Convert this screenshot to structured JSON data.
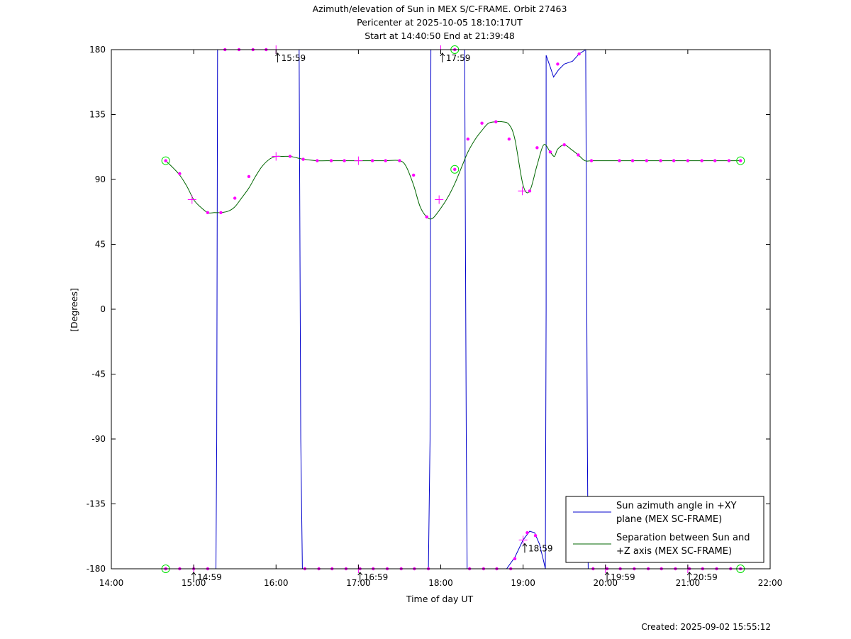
{
  "header": {
    "title_line1": "Azimuth/elevation of Sun in MEX S/C-FRAME.  Orbit 27463",
    "title_line2": "Pericenter at 2025-10-05 18:10:17UT",
    "title_line3": "Start at 14:40:50 End at 21:39:48"
  },
  "footer": {
    "created": "Created: 2025-09-02 15:55:12"
  },
  "colors": {
    "azimuth": "#0000cc",
    "separation": "#006600",
    "marker": "#ff00ff",
    "circle": "#00dd00"
  },
  "chart_data": {
    "type": "line",
    "title": "Azimuth/elevation of Sun in MEX S/C-FRAME.  Orbit 27463",
    "xlabel": "Time of day UT",
    "ylabel": "[Degrees]",
    "xlim": [
      14.0,
      22.0
    ],
    "ylim": [
      -180,
      180
    ],
    "x_ticks": [
      14,
      15,
      16,
      17,
      18,
      19,
      20,
      21,
      22
    ],
    "x_tick_labels": [
      "14:00",
      "15:00",
      "16:00",
      "17:00",
      "18:00",
      "19:00",
      "20:00",
      "21:00",
      "22:00"
    ],
    "y_ticks": [
      180,
      135,
      90,
      45,
      0,
      -45,
      -90,
      -135,
      -180
    ],
    "y_tick_labels": [
      "180",
      "135",
      "90",
      "45",
      "0",
      "-45",
      "-90",
      "-135",
      "-180"
    ],
    "grid": false,
    "legend_position": "bottom-right",
    "series": [
      {
        "name": "Sun azimuth angle in +XY plane (MEX SC-FRAME)",
        "legend_lines": [
          "Sun azimuth angle in +XY",
          "plane (MEX SC-FRAME)"
        ],
        "segments": [
          [
            [
              14.68,
              -180
            ],
            [
              15.0,
              -180
            ],
            [
              15.27,
              -180
            ],
            [
              15.28,
              -90
            ],
            [
              15.29,
              180
            ]
          ],
          [
            [
              15.29,
              180
            ],
            [
              15.6,
              180
            ],
            [
              16.0,
              180
            ],
            [
              16.28,
              180
            ],
            [
              16.3,
              -90
            ],
            [
              16.32,
              -180
            ]
          ],
          [
            [
              16.32,
              -180
            ],
            [
              17.0,
              -180
            ],
            [
              17.85,
              -180
            ],
            [
              17.87,
              -90
            ],
            [
              17.88,
              180
            ]
          ],
          [
            [
              17.88,
              180
            ],
            [
              18.2,
              180
            ],
            [
              18.29,
              180
            ],
            [
              18.31,
              -90
            ],
            [
              18.32,
              -180
            ]
          ],
          [
            [
              18.32,
              -180
            ],
            [
              18.8,
              -180
            ],
            [
              18.9,
              -172
            ],
            [
              19.0,
              -160
            ],
            [
              19.08,
              -154
            ],
            [
              19.14,
              -155
            ],
            [
              19.2,
              -163
            ],
            [
              19.25,
              -175
            ],
            [
              19.27,
              -180
            ]
          ],
          [
            [
              19.27,
              -180
            ],
            [
              19.28,
              0
            ],
            [
              19.28,
              176
            ],
            [
              19.33,
              168
            ],
            [
              19.37,
              161
            ],
            [
              19.43,
              166
            ],
            [
              19.5,
              170
            ],
            [
              19.6,
              172
            ],
            [
              19.68,
              177
            ],
            [
              19.76,
              180
            ]
          ],
          [
            [
              19.76,
              180
            ],
            [
              19.78,
              -90
            ],
            [
              19.79,
              -180
            ],
            [
              20.5,
              -180
            ],
            [
              21.4,
              -180
            ],
            [
              21.64,
              -180
            ]
          ]
        ]
      },
      {
        "name": "Separation between Sun and +Z axis (MEX SC-FRAME)",
        "legend_lines": [
          "Separation between Sun and",
          "+Z axis (MEX SC-FRAME)"
        ],
        "x": [
          14.66,
          14.75,
          14.83,
          14.92,
          15.0,
          15.08,
          15.17,
          15.25,
          15.33,
          15.42,
          15.5,
          15.58,
          15.67,
          15.75,
          15.83,
          15.92,
          16.0,
          16.08,
          16.17,
          16.25,
          16.33,
          16.5,
          16.67,
          16.83,
          17.0,
          17.17,
          17.33,
          17.5,
          17.58,
          17.67,
          17.75,
          17.83,
          17.9,
          18.0,
          18.08,
          18.17,
          18.25,
          18.33,
          18.42,
          18.5,
          18.58,
          18.67,
          18.75,
          18.83,
          18.9,
          19.0,
          19.08,
          19.17,
          19.25,
          19.33,
          19.38,
          19.42,
          19.5,
          19.58,
          19.67,
          19.75,
          19.83,
          20.0,
          20.17,
          20.33,
          20.5,
          20.67,
          20.83,
          21.0,
          21.17,
          21.33,
          21.5,
          21.64
        ],
        "y": [
          103,
          98,
          93,
          85,
          76,
          71,
          67,
          67,
          67,
          68,
          71,
          77,
          84,
          92,
          99,
          104,
          106,
          106,
          106,
          105,
          104,
          103,
          103,
          103,
          103,
          103,
          103,
          103,
          99,
          86,
          71,
          64,
          63,
          70,
          77,
          87,
          98,
          109,
          118,
          124,
          129,
          130,
          130,
          128,
          118,
          86,
          82,
          100,
          114,
          109,
          106,
          111,
          114,
          111,
          107,
          103,
          103,
          103,
          103,
          103,
          103,
          103,
          103,
          103,
          103,
          103,
          103,
          103
        ]
      }
    ],
    "markers": [
      [
        14.66,
        -180
      ],
      [
        14.83,
        -180
      ],
      [
        15.0,
        -180
      ],
      [
        15.17,
        -180
      ],
      [
        15.38,
        180
      ],
      [
        15.55,
        180
      ],
      [
        15.72,
        180
      ],
      [
        15.88,
        180
      ],
      [
        16.35,
        -180
      ],
      [
        16.52,
        -180
      ],
      [
        16.68,
        -180
      ],
      [
        16.85,
        -180
      ],
      [
        17.02,
        -180
      ],
      [
        17.18,
        -180
      ],
      [
        17.35,
        -180
      ],
      [
        17.52,
        -180
      ],
      [
        17.68,
        -180
      ],
      [
        17.85,
        -180
      ],
      [
        18.35,
        -180
      ],
      [
        18.52,
        -180
      ],
      [
        18.68,
        -180
      ],
      [
        18.85,
        -180
      ],
      [
        18.9,
        -173
      ],
      [
        19.05,
        -155
      ],
      [
        19.15,
        -157
      ],
      [
        19.42,
        170
      ],
      [
        19.68,
        177
      ],
      [
        19.85,
        -180
      ],
      [
        20.02,
        -180
      ],
      [
        20.18,
        -180
      ],
      [
        20.35,
        -180
      ],
      [
        20.52,
        -180
      ],
      [
        20.68,
        -180
      ],
      [
        20.85,
        -180
      ],
      [
        21.02,
        -180
      ],
      [
        21.18,
        -180
      ],
      [
        21.35,
        -180
      ],
      [
        21.52,
        -180
      ],
      [
        14.83,
        94
      ],
      [
        15.17,
        67
      ],
      [
        15.33,
        67
      ],
      [
        15.5,
        77
      ],
      [
        15.67,
        92
      ],
      [
        16.17,
        106
      ],
      [
        16.33,
        104
      ],
      [
        16.5,
        103
      ],
      [
        16.67,
        103
      ],
      [
        16.83,
        103
      ],
      [
        17.17,
        103
      ],
      [
        17.33,
        103
      ],
      [
        17.5,
        103
      ],
      [
        17.67,
        93
      ],
      [
        17.83,
        64
      ],
      [
        18.33,
        118
      ],
      [
        18.5,
        129
      ],
      [
        18.67,
        130
      ],
      [
        18.83,
        118
      ],
      [
        19.08,
        82
      ],
      [
        19.17,
        112
      ],
      [
        19.33,
        109
      ],
      [
        19.5,
        114
      ],
      [
        19.67,
        107
      ],
      [
        19.83,
        103
      ],
      [
        20.17,
        103
      ],
      [
        20.33,
        103
      ],
      [
        20.5,
        103
      ],
      [
        20.67,
        103
      ],
      [
        20.83,
        103
      ],
      [
        21.0,
        103
      ],
      [
        21.17,
        103
      ],
      [
        21.33,
        103
      ],
      [
        21.5,
        103
      ]
    ],
    "crosses": [
      [
        14.98,
        76
      ],
      [
        16.0,
        106
      ],
      [
        17.0,
        103
      ],
      [
        17.98,
        76
      ],
      [
        18.99,
        82
      ],
      [
        15.0,
        -180
      ],
      [
        16.0,
        180
      ],
      [
        17.0,
        -180
      ],
      [
        18.0,
        180
      ],
      [
        19.0,
        -160
      ],
      [
        20.0,
        -180
      ],
      [
        21.0,
        -180
      ]
    ],
    "circles": [
      [
        14.66,
        103
      ],
      [
        14.66,
        -180
      ],
      [
        18.17,
        97
      ],
      [
        18.17,
        180
      ],
      [
        21.64,
        103
      ],
      [
        21.64,
        -180
      ]
    ],
    "annotations": [
      {
        "x": 15.0,
        "y": -180,
        "label": "14:59",
        "pos": "below"
      },
      {
        "x": 16.02,
        "y": 180,
        "label": "15:59",
        "pos": "below"
      },
      {
        "x": 17.02,
        "y": -180,
        "label": "16:59",
        "pos": "below"
      },
      {
        "x": 18.02,
        "y": 180,
        "label": "17:59",
        "pos": "below"
      },
      {
        "x": 19.02,
        "y": -160,
        "label": "18:59",
        "pos": "below"
      },
      {
        "x": 20.02,
        "y": -180,
        "label": "19:59",
        "pos": "below"
      },
      {
        "x": 21.02,
        "y": -180,
        "label": "20:59",
        "pos": "below"
      }
    ]
  }
}
